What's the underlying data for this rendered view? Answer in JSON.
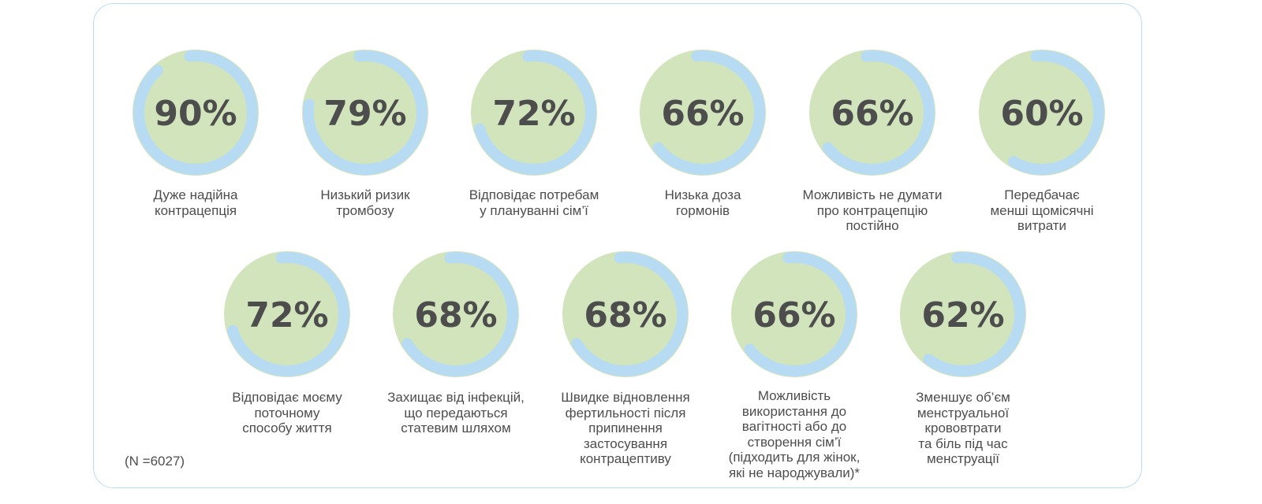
{
  "colors": {
    "ring": "#b7dbf2",
    "inner": "#d1e4bb",
    "text": "#4d4d4d",
    "border": "#b9dcef"
  },
  "chart_data": {
    "type": "donut-progress",
    "unit": "%",
    "items": [
      {
        "value": 90,
        "display": "90%",
        "label": "Дуже надійна\nконтрацепція"
      },
      {
        "value": 79,
        "display": "79%",
        "label": "Низький ризик\nтромбозу"
      },
      {
        "value": 72,
        "display": "72%",
        "label": "Відповідає потребам\nу плануванні сім’ї"
      },
      {
        "value": 66,
        "display": "66%",
        "label": "Низька доза\nгормонів"
      },
      {
        "value": 66,
        "display": "66%",
        "label": "Можливість не думати\nпро контрацепцію\nпостійно"
      },
      {
        "value": 60,
        "display": "60%",
        "label": "Передбачає\nменші щомісячні\nвитрати"
      },
      {
        "value": 72,
        "display": "72%",
        "label": "Відповідає моєму\nпоточному\nспособу життя"
      },
      {
        "value": 68,
        "display": "68%",
        "label": "Захищає від інфекцій,\nщо передаються\nстатевим шляхом"
      },
      {
        "value": 68,
        "display": "68%",
        "label": "Швидке відновлення\nфертильності після\nприпинення\nзастосування\nконтрацептиву"
      },
      {
        "value": 66,
        "display": "66%",
        "label": "Можливість\nвикористання до\nвагітності або до\nстворення сім’ї\n(підходить для жінок,\nякі не народжували)*"
      },
      {
        "value": 62,
        "display": "62%",
        "label": "Зменшує об’єм\nменструальної\nкрововтрати\nта біль під час\nменструації"
      }
    ]
  },
  "footnote": "(N =6027)"
}
